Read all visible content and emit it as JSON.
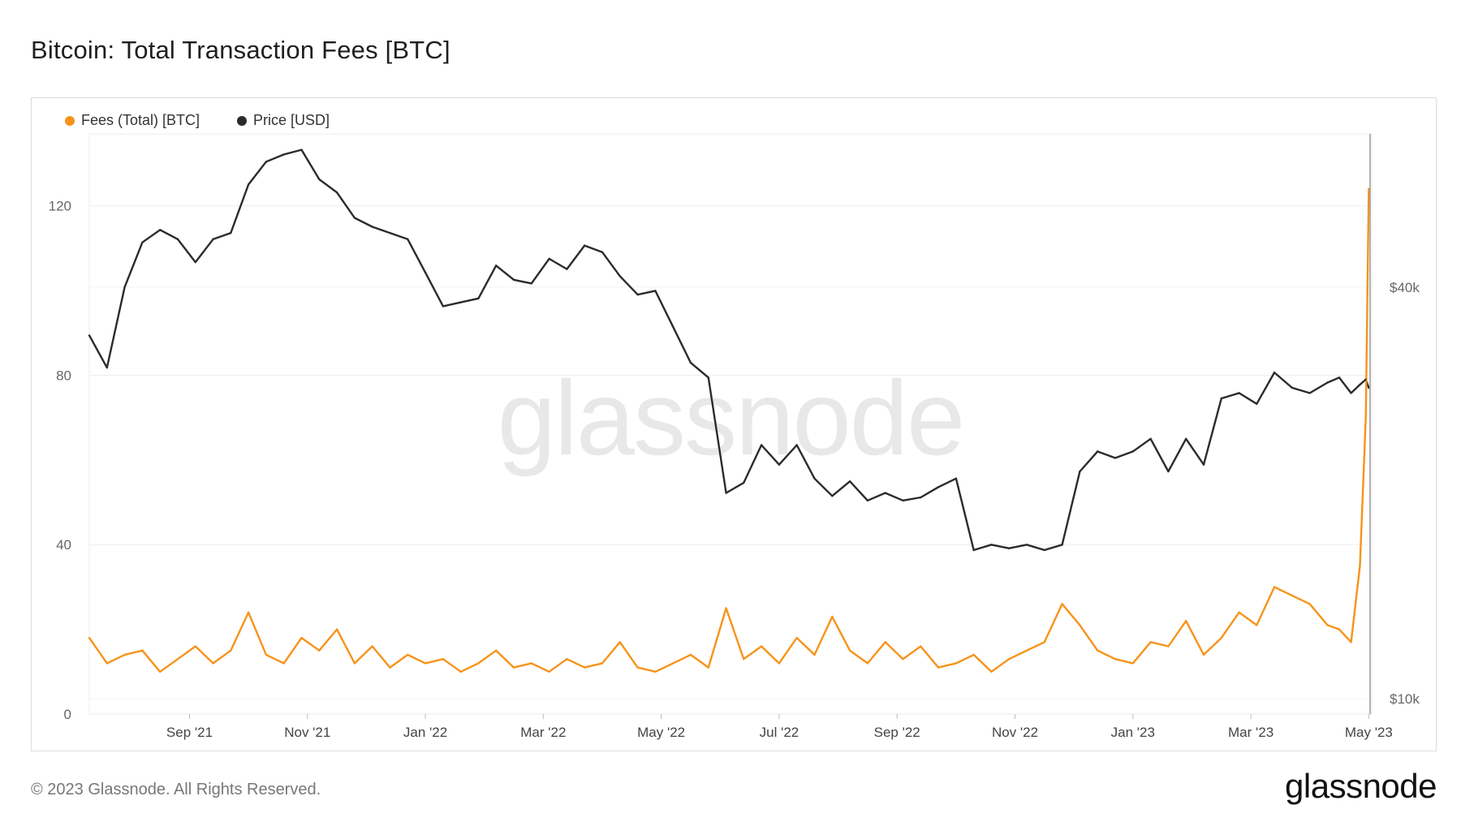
{
  "title": "Bitcoin: Total Transaction Fees [BTC]",
  "watermark": "glassnode",
  "footer": "© 2023 Glassnode. All Rights Reserved.",
  "logo": "glassnode",
  "colors": {
    "fees": "#f7931a",
    "price": "#2b2b2b",
    "grid": "#eeeeee"
  },
  "legend": [
    {
      "label": "Fees (Total) [BTC]",
      "color": "#f7931a"
    },
    {
      "label": "Price [USD]",
      "color": "#2b2b2b"
    }
  ],
  "chart_data": {
    "type": "line",
    "title": "Bitcoin: Total Transaction Fees [BTC]",
    "x_ticks": [
      "Sep '21",
      "Nov '21",
      "Jan '22",
      "Mar '22",
      "May '22",
      "Jul '22",
      "Sep '22",
      "Nov '22",
      "Jan '23",
      "Mar '23",
      "May '23"
    ],
    "x_tick_months": [
      3,
      5,
      7,
      9,
      11,
      13,
      15,
      17,
      19,
      21,
      23
    ],
    "x_range_months": [
      1.3,
      23.05
    ],
    "left_axis": {
      "ticks": [
        0,
        40,
        80,
        120
      ],
      "ylim": [
        0,
        137
      ]
    },
    "right_axis": {
      "ticks": [
        "$10k",
        "$40k"
      ],
      "tick_values": [
        10000,
        40000
      ],
      "scale": "log",
      "ylim": [
        9500,
        67000
      ]
    },
    "legend_position": "top-left",
    "grid": true,
    "series": [
      {
        "name": "Fees (Total) [BTC]",
        "axis": "left",
        "x_months": [
          1.3,
          1.6,
          1.9,
          2.2,
          2.5,
          2.8,
          3.1,
          3.4,
          3.7,
          4.0,
          4.3,
          4.6,
          4.9,
          5.2,
          5.5,
          5.8,
          6.1,
          6.4,
          6.7,
          7.0,
          7.3,
          7.6,
          7.9,
          8.2,
          8.5,
          8.8,
          9.1,
          9.4,
          9.7,
          10.0,
          10.3,
          10.6,
          10.9,
          11.2,
          11.5,
          11.8,
          12.1,
          12.4,
          12.7,
          13.0,
          13.3,
          13.6,
          13.9,
          14.2,
          14.5,
          14.8,
          15.1,
          15.4,
          15.7,
          16.0,
          16.3,
          16.6,
          16.9,
          17.2,
          17.5,
          17.8,
          18.1,
          18.4,
          18.7,
          19.0,
          19.3,
          19.6,
          19.9,
          20.2,
          20.5,
          20.8,
          21.1,
          21.4,
          21.7,
          22.0,
          22.3,
          22.5,
          22.7,
          22.85,
          22.95,
          23.0
        ],
        "values": [
          18,
          12,
          14,
          15,
          10,
          13,
          16,
          12,
          15,
          24,
          14,
          12,
          18,
          15,
          20,
          12,
          16,
          11,
          14,
          12,
          13,
          10,
          12,
          15,
          11,
          12,
          10,
          13,
          11,
          12,
          17,
          11,
          10,
          12,
          14,
          11,
          25,
          13,
          16,
          12,
          18,
          14,
          23,
          15,
          12,
          17,
          13,
          16,
          11,
          12,
          14,
          10,
          13,
          15,
          17,
          26,
          21,
          15,
          13,
          12,
          17,
          16,
          22,
          14,
          18,
          24,
          21,
          30,
          28,
          26,
          21,
          20,
          17,
          35,
          70,
          124
        ],
        "peak_note": "line extends to ~124 BTC at start of May '23"
      },
      {
        "name": "Price [USD]",
        "axis": "right",
        "x_months": [
          1.3,
          1.6,
          1.9,
          2.2,
          2.5,
          2.8,
          3.1,
          3.4,
          3.7,
          4.0,
          4.3,
          4.6,
          4.9,
          5.2,
          5.5,
          5.8,
          6.1,
          6.4,
          6.7,
          7.0,
          7.3,
          7.6,
          7.9,
          8.2,
          8.5,
          8.8,
          9.1,
          9.4,
          9.7,
          10.0,
          10.3,
          10.6,
          10.9,
          11.2,
          11.5,
          11.8,
          12.1,
          12.4,
          12.7,
          13.0,
          13.3,
          13.6,
          13.9,
          14.2,
          14.5,
          14.8,
          15.1,
          15.4,
          15.7,
          16.0,
          16.3,
          16.6,
          16.9,
          17.2,
          17.5,
          17.8,
          18.1,
          18.4,
          18.7,
          19.0,
          19.3,
          19.6,
          19.9,
          20.2,
          20.5,
          20.8,
          21.1,
          21.4,
          21.7,
          22.0,
          22.3,
          22.5,
          22.7,
          22.85,
          22.95,
          23.0
        ],
        "values": [
          34000,
          30500,
          40000,
          46500,
          48500,
          47000,
          43500,
          47000,
          48000,
          56500,
          61000,
          62500,
          63500,
          57500,
          55000,
          50500,
          49000,
          48000,
          47000,
          42000,
          37500,
          38000,
          38500,
          43000,
          41000,
          40500,
          44000,
          42500,
          46000,
          45000,
          41500,
          39000,
          39500,
          35000,
          31000,
          29500,
          20000,
          20700,
          23500,
          22000,
          23500,
          21000,
          19800,
          20800,
          19500,
          20000,
          19500,
          19700,
          20400,
          21000,
          16500,
          16800,
          16600,
          16800,
          16500,
          16800,
          21500,
          23000,
          22500,
          23000,
          24000,
          21500,
          24000,
          22000,
          27500,
          28000,
          27000,
          30000,
          28500,
          28000,
          29000,
          29500,
          28000,
          28800,
          29300,
          28500
        ]
      }
    ]
  }
}
